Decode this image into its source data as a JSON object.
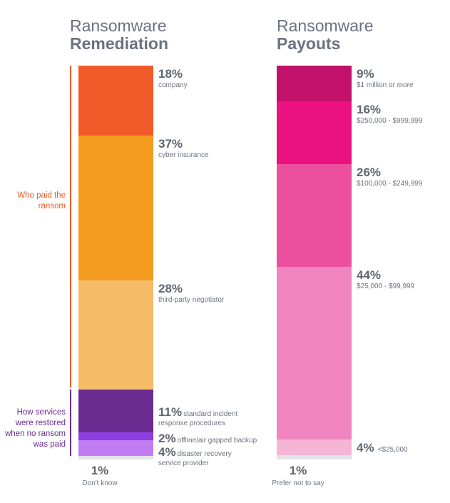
{
  "chart_data": [
    {
      "type": "bar",
      "title": "Ransomware Remediation",
      "title_light": "Ransomware",
      "title_bold": "Remediation",
      "segments": [
        {
          "value": 18,
          "pct": "18%",
          "label": "company",
          "color": "#f15a29"
        },
        {
          "value": 37,
          "pct": "37%",
          "label": "cyber insurance",
          "color": "#f39c1f"
        },
        {
          "value": 28,
          "pct": "28%",
          "label": "third-party negotiator",
          "color": "#f5bb66"
        },
        {
          "value": 11,
          "pct": "11%",
          "label": "standard incident response procedures",
          "label_line1": "standard incident",
          "label_line2": "response procedures",
          "color": "#6b2c91"
        },
        {
          "value": 2,
          "pct": "2%",
          "label": "offline/air gapped backup",
          "color": "#8e3de0"
        },
        {
          "value": 4,
          "pct": "4%",
          "label": "disaster recovery service provider",
          "label_line1": "disaster recovery",
          "label_line2": "service provider",
          "color": "#c07cf0"
        },
        {
          "value": 1,
          "pct": "1%",
          "label": "Don't know",
          "color": "#e3e3ea"
        }
      ],
      "groups": [
        {
          "label": "Who paid the ransom",
          "line1": "Who paid the",
          "line2": "ransom",
          "color": "#f15a29"
        },
        {
          "label": "How services were restored when no ransom was paid",
          "line1": "How services",
          "line2": "were restored",
          "line3": "when no ransom",
          "line4": "was paid",
          "color": "#6b2c91"
        }
      ]
    },
    {
      "type": "bar",
      "title": "Ransomware Payouts",
      "title_light": "Ransomware",
      "title_bold": "Payouts",
      "segments": [
        {
          "value": 9,
          "pct": "9%",
          "label": "$1 million or more",
          "color": "#c2116b"
        },
        {
          "value": 16,
          "pct": "16%",
          "label": "$250,000 - $999,999",
          "color": "#ec1181"
        },
        {
          "value": 26,
          "pct": "26%",
          "label": "$100,000 - $249,999",
          "color": "#ed4f9f"
        },
        {
          "value": 44,
          "pct": "44%",
          "label": "$25,000 - $99,999",
          "color": "#f085bf"
        },
        {
          "value": 4,
          "pct": "4%",
          "label": "<$25,000",
          "color": "#f5b5d6"
        },
        {
          "value": 1,
          "pct": "1%",
          "label": "Prefer not to say",
          "color": "#e3e3ea"
        }
      ]
    }
  ]
}
